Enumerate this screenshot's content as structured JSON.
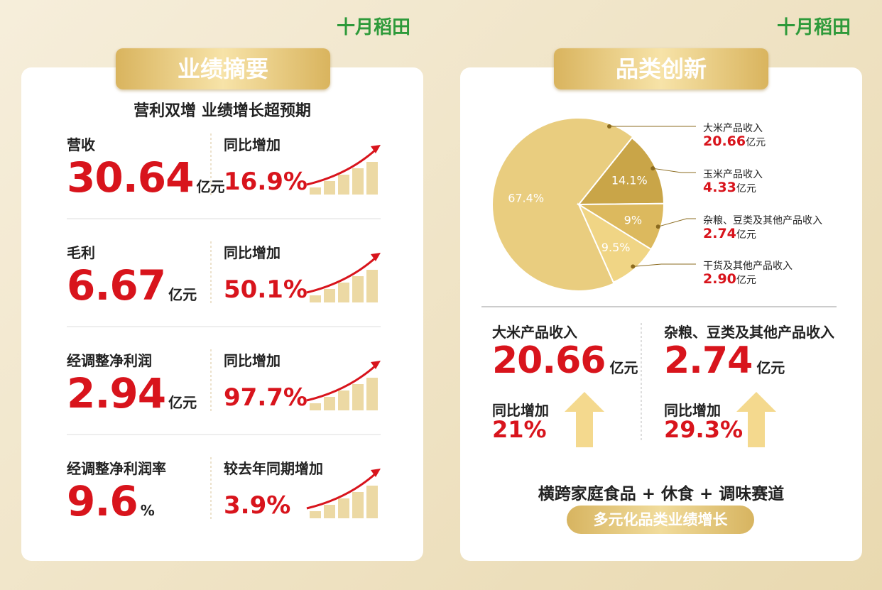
{
  "brand": "十月稻田",
  "left": {
    "title": "业绩摘要",
    "subtitle": "营利双增  业绩增长超预期",
    "items": [
      {
        "label": "营收",
        "value": "30.64",
        "unit": "亿元",
        "change_label": "同比增加",
        "change": "16.9%"
      },
      {
        "label": "毛利",
        "value": "6.67",
        "unit": "亿元",
        "change_label": "同比增加",
        "change": "50.1%"
      },
      {
        "label": "经调整净利润",
        "value": "2.94",
        "unit": "亿元",
        "change_label": "同比增加",
        "change": "97.7%"
      },
      {
        "label": "经调整净利润率",
        "value": "9.6",
        "unit": "%",
        "change_label": "较去年同期增加",
        "change": "3.9%"
      }
    ]
  },
  "right": {
    "title": "品类创新",
    "pie": {
      "type": "pie",
      "categories": [
        "大米产品收入",
        "玉米产品收入",
        "杂粮、豆类及其他产品收入",
        "干货及其他产品收入"
      ],
      "values": [
        67.4,
        14.1,
        9,
        9.5
      ],
      "value_labels": [
        "67.4%",
        "14.1%",
        "9%",
        "9.5%"
      ],
      "amounts": [
        "20.66",
        "4.33",
        "2.74",
        "2.90"
      ],
      "units": [
        "亿元",
        "亿元",
        "亿元",
        "亿元"
      ],
      "colors": [
        "#e9cd7f",
        "#c9a548",
        "#dcb95e",
        "#f0d585"
      ]
    },
    "highlights": [
      {
        "label": "大米产品收入",
        "value": "20.66",
        "unit": "亿元",
        "change_label": "同比增加",
        "change": "21%"
      },
      {
        "label": "杂粮、豆类及其他产品收入",
        "value": "2.74",
        "unit": "亿元",
        "change_label": "同比增加",
        "change": "29.3%"
      }
    ],
    "footer": "横跨家庭食品 + 休食 + 调味赛道",
    "badge": "多元化品类业绩增长"
  }
}
